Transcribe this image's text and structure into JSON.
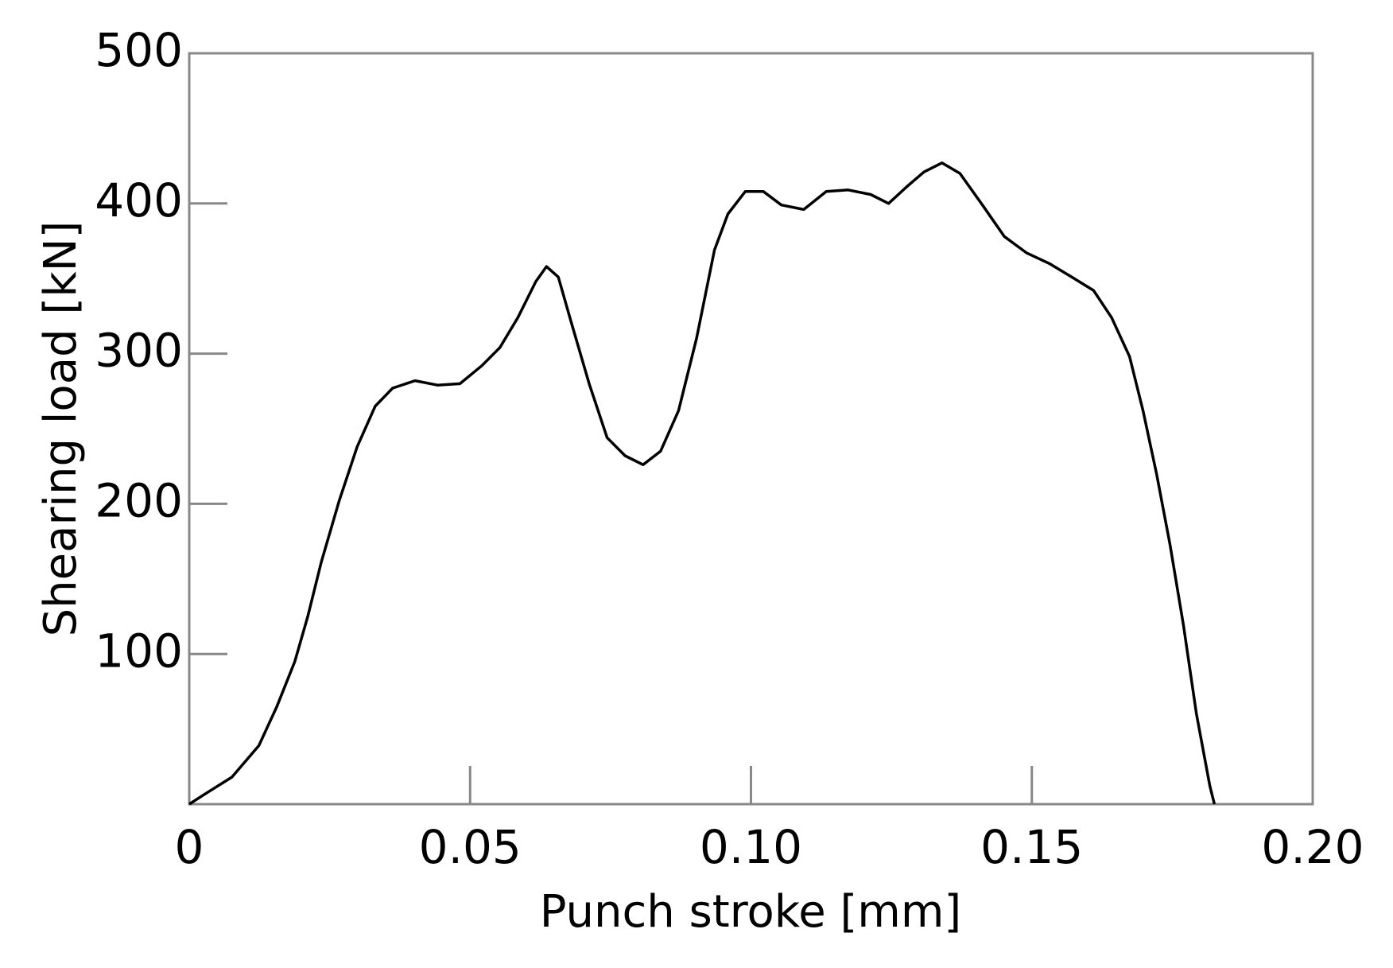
{
  "chart_data": {
    "type": "line",
    "x_label": "Punch stroke [mm]",
    "y_label": "Shearing load [kN]",
    "xlim": [
      0,
      0.2
    ],
    "ylim": [
      0,
      500
    ],
    "xticks": [
      0,
      0.05,
      {
        "value": 0.1,
        "label": "0.10"
      },
      0.15,
      {
        "value": 0.2,
        "label": "0.20"
      }
    ],
    "yticks": [
      100,
      200,
      300,
      400,
      500
    ],
    "grid": false,
    "series": [
      {
        "color": "#000000",
        "x": [
          0,
          0.0029,
          0.0076,
          0.0124,
          0.0156,
          0.0188,
          0.0211,
          0.0235,
          0.0267,
          0.0299,
          0.0331,
          0.0362,
          0.0402,
          0.0442,
          0.0482,
          0.0521,
          0.0553,
          0.0585,
          0.0617,
          0.0636,
          0.0657,
          0.068,
          0.0712,
          0.0744,
          0.0776,
          0.0808,
          0.0839,
          0.0871,
          0.0903,
          0.0935,
          0.0959,
          0.099,
          0.1022,
          0.1054,
          0.1094,
          0.1134,
          0.1173,
          0.1213,
          0.1245,
          0.1277,
          0.1308,
          0.134,
          0.1372,
          0.1412,
          0.1451,
          0.1491,
          0.1531,
          0.1571,
          0.161,
          0.1642,
          0.1674,
          0.1698,
          0.1722,
          0.1746,
          0.177,
          0.1793,
          0.1817,
          0.1825
        ],
        "values": [
          0,
          7,
          18,
          39,
          65,
          95,
          125,
          161,
          202,
          238,
          265,
          277,
          282,
          279,
          280,
          292,
          304,
          324,
          348,
          358,
          351,
          321,
          280,
          244,
          232,
          226,
          235,
          262,
          310,
          369,
          393,
          408,
          408,
          399,
          396,
          408,
          409,
          406,
          400,
          411,
          421,
          427,
          420,
          399,
          378,
          367,
          360,
          351,
          342,
          324,
          298,
          262,
          220,
          173,
          119,
          60,
          12,
          0
        ]
      }
    ]
  }
}
